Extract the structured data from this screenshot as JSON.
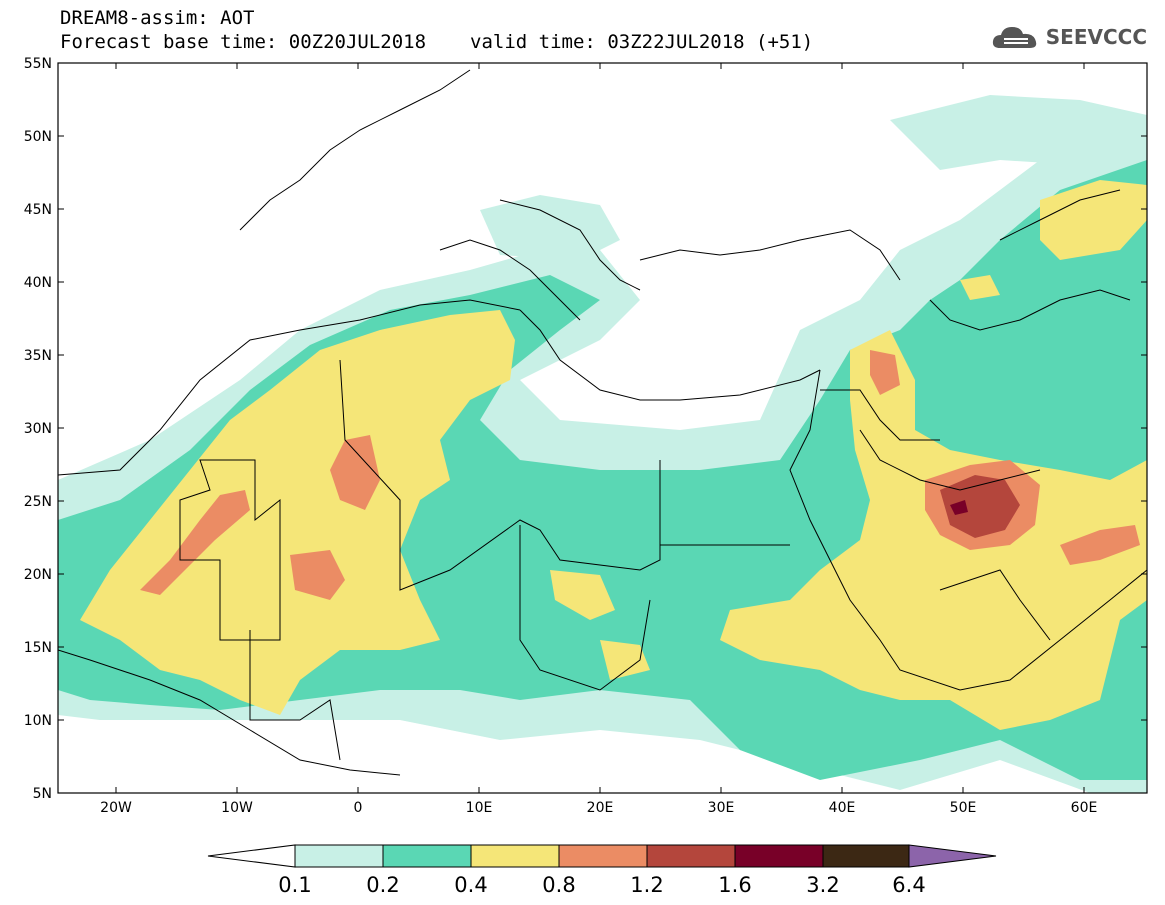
{
  "header": {
    "title": "DREAM8-assim: AOT",
    "base_time": "Forecast base time: 00Z20JUL2018",
    "valid_time": "valid time: 03Z22JUL2018 (+51)"
  },
  "logo": {
    "text": "SEEVCCC",
    "icon": "cloud-icon"
  },
  "axes": {
    "lat_labels": [
      "55N",
      "50N",
      "45N",
      "40N",
      "35N",
      "30N",
      "25N",
      "20N",
      "15N",
      "10N",
      "5N"
    ],
    "lon_labels": [
      "20W",
      "10W",
      "0",
      "10E",
      "20E",
      "30E",
      "40E",
      "50E",
      "60E"
    ]
  },
  "colorbar": {
    "labels": [
      "0.1",
      "0.2",
      "0.4",
      "0.8",
      "1.2",
      "1.6",
      "3.2",
      "6.4"
    ],
    "colors": [
      "#ffffff",
      "#c8f0e6",
      "#5ad7b4",
      "#f5e678",
      "#eb8c64",
      "#b4463c",
      "#780028",
      "#3c2814",
      "#8c64aa"
    ]
  }
}
